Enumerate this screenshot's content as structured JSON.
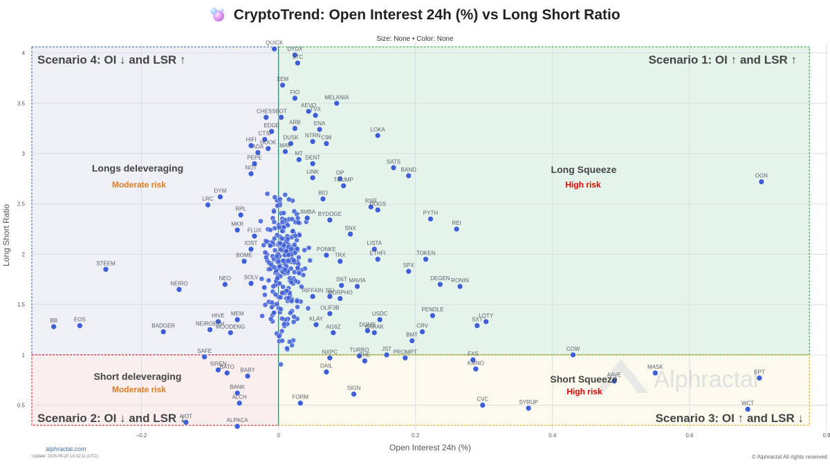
{
  "header": {
    "title": "CryptoTrend: Open Interest 24h (%) vs Long Short Ratio",
    "subtitle": "Size: None • Color: None"
  },
  "footer": {
    "site": "alphractal.com",
    "update": "Update: 2025-05-20 14:32:11 (UTC)",
    "copyright": "© Alphractal All rights reserved"
  },
  "watermark": "Alphractal",
  "colors": {
    "point": "#3f5fd6",
    "scenario1": "#e4f4ea",
    "scenario2": "#fbeeee",
    "scenario3": "#fcfaee",
    "scenario4": "#eef0f6",
    "moderate_risk": "#e07b20",
    "high_risk": "#dd0000"
  },
  "chart_data": {
    "type": "scatter",
    "title": "CryptoTrend: Open Interest 24h (%) vs Long Short Ratio",
    "subtitle": "Size: None • Color: None",
    "xlabel": "Open Interest 24h (%)",
    "ylabel": "Long Short Ratio",
    "xlim": [
      -0.36,
      0.8
    ],
    "ylim": [
      0.25,
      4.1
    ],
    "xticks": [
      -0.2,
      0,
      0.2,
      0.4,
      0.6,
      0.8
    ],
    "xtick_labels": [
      "−0.2",
      "0",
      "0.2",
      "0.4",
      "0.6",
      "0.8"
    ],
    "yticks": [
      0.5,
      1,
      1.5,
      2,
      2.5,
      3,
      3.5,
      4
    ],
    "ytick_labels": [
      "0.5",
      "1",
      "1.5",
      "2",
      "2.5",
      "3",
      "3.5",
      "4"
    ],
    "grid": true,
    "quadrants": {
      "x_split": 0,
      "y_split": 1,
      "box_x": [
        -0.36,
        0.775
      ],
      "box_y": [
        0.3,
        4.06
      ],
      "scenario1": {
        "label": "Scenario 1: OI ↑ and LSR ↑",
        "zone": "Long Squeeze",
        "risk": "High risk"
      },
      "scenario2": {
        "label": "Scenario 2: OI ↓ and LSR ↓",
        "zone": "Short deleveraging",
        "risk": "Moderate risk"
      },
      "scenario3": {
        "label": "Scenario 3: OI ↑ and LSR ↓",
        "zone": "Short Squeeze",
        "risk": "High risk"
      },
      "scenario4": {
        "label": "Scenario 4: OI ↓ and LSR ↑",
        "zone": "Longs deleveraging",
        "risk": "Moderate risk"
      }
    },
    "points": [
      {
        "label": "QUICK",
        "x": -0.006,
        "y": 4.04
      },
      {
        "label": "DYDX",
        "x": 0.024,
        "y": 3.98
      },
      {
        "label": "STC",
        "x": 0.028,
        "y": 3.9
      },
      {
        "label": "XEM",
        "x": 0.006,
        "y": 3.68
      },
      {
        "label": "FIO",
        "x": 0.024,
        "y": 3.55
      },
      {
        "label": "MELANIA",
        "x": 0.085,
        "y": 3.5
      },
      {
        "label": "AEVO",
        "x": 0.044,
        "y": 3.42
      },
      {
        "label": "TVX",
        "x": 0.054,
        "y": 3.38
      },
      {
        "label": "CHESS",
        "x": -0.018,
        "y": 3.36
      },
      {
        "label": "BOT",
        "x": 0.004,
        "y": 3.36
      },
      {
        "label": "ARB",
        "x": 0.024,
        "y": 3.25
      },
      {
        "label": "ENA",
        "x": 0.06,
        "y": 3.24
      },
      {
        "label": "EDGE",
        "x": -0.01,
        "y": 3.22
      },
      {
        "label": "LOKA",
        "x": 0.145,
        "y": 3.18
      },
      {
        "label": "DUSK",
        "x": 0.018,
        "y": 3.1
      },
      {
        "label": "NTRN",
        "x": 0.05,
        "y": 3.12
      },
      {
        "label": "C98",
        "x": 0.07,
        "y": 3.1
      },
      {
        "label": "CTSI",
        "x": -0.02,
        "y": 3.14
      },
      {
        "label": "HIFI",
        "x": -0.04,
        "y": 3.08
      },
      {
        "label": "HOOK",
        "x": -0.015,
        "y": 3.05
      },
      {
        "label": "ADA",
        "x": -0.03,
        "y": 3.01
      },
      {
        "label": "MAV",
        "x": 0.01,
        "y": 3.02
      },
      {
        "label": "SATS",
        "x": 0.168,
        "y": 2.86
      },
      {
        "label": "BAND",
        "x": 0.19,
        "y": 2.78
      },
      {
        "label": "OGN",
        "x": 0.705,
        "y": 2.72
      },
      {
        "label": "MT",
        "x": 0.03,
        "y": 2.94
      },
      {
        "label": "DENT",
        "x": 0.05,
        "y": 2.9
      },
      {
        "label": "PEPE",
        "x": -0.035,
        "y": 2.9
      },
      {
        "label": "NOT",
        "x": -0.04,
        "y": 2.8
      },
      {
        "label": "LINK",
        "x": 0.05,
        "y": 2.76
      },
      {
        "label": "OP",
        "x": 0.09,
        "y": 2.75
      },
      {
        "label": "TRUMP",
        "x": 0.095,
        "y": 2.68
      },
      {
        "label": "DYM",
        "x": -0.085,
        "y": 2.57
      },
      {
        "label": "LRC",
        "x": -0.103,
        "y": 2.49
      },
      {
        "label": "BIO",
        "x": 0.065,
        "y": 2.55
      },
      {
        "label": "RSR",
        "x": 0.135,
        "y": 2.47
      },
      {
        "label": "DOGS",
        "x": 0.145,
        "y": 2.44
      },
      {
        "label": "PYTH",
        "x": 0.222,
        "y": 2.35
      },
      {
        "label": "REI",
        "x": 0.26,
        "y": 2.25
      },
      {
        "label": "RPL",
        "x": -0.055,
        "y": 2.39
      },
      {
        "label": "JIMBA",
        "x": 0.042,
        "y": 2.36
      },
      {
        "label": "BYDOGE",
        "x": 0.075,
        "y": 2.34
      },
      {
        "label": "SNX",
        "x": 0.105,
        "y": 2.2
      },
      {
        "label": "MKR",
        "x": -0.06,
        "y": 2.24
      },
      {
        "label": "FLUX",
        "x": -0.035,
        "y": 2.18
      },
      {
        "label": "LISTA",
        "x": 0.14,
        "y": 2.05
      },
      {
        "label": "ETHFI",
        "x": 0.145,
        "y": 1.95
      },
      {
        "label": "TOKEN",
        "x": 0.215,
        "y": 1.95
      },
      {
        "label": "SPX",
        "x": 0.19,
        "y": 1.83
      },
      {
        "label": "IOST",
        "x": -0.04,
        "y": 2.05
      },
      {
        "label": "BOME",
        "x": -0.05,
        "y": 1.93
      },
      {
        "label": "PONKE",
        "x": 0.07,
        "y": 1.99
      },
      {
        "label": "TRX",
        "x": 0.09,
        "y": 1.93
      },
      {
        "label": "STEEM",
        "x": -0.252,
        "y": 1.85
      },
      {
        "label": "NEO",
        "x": -0.078,
        "y": 1.7
      },
      {
        "label": "NEIRO",
        "x": -0.145,
        "y": 1.65
      },
      {
        "label": "SOLV",
        "x": -0.04,
        "y": 1.71
      },
      {
        "label": "DEGEN",
        "x": 0.236,
        "y": 1.7
      },
      {
        "label": "RONIN",
        "x": 0.265,
        "y": 1.68
      },
      {
        "label": "SNT",
        "x": 0.092,
        "y": 1.69
      },
      {
        "label": "MAVIA",
        "x": 0.115,
        "y": 1.68
      },
      {
        "label": "SEI",
        "x": 0.075,
        "y": 1.58
      },
      {
        "label": "MORPHO",
        "x": 0.09,
        "y": 1.56
      },
      {
        "label": "RIFFAIN",
        "x": 0.05,
        "y": 1.58
      },
      {
        "label": "PENDLE",
        "x": 0.225,
        "y": 1.39
      },
      {
        "label": "LQTY",
        "x": 0.303,
        "y": 1.33
      },
      {
        "label": "SXT",
        "x": 0.29,
        "y": 1.29
      },
      {
        "label": "USDC",
        "x": 0.148,
        "y": 1.35
      },
      {
        "label": "BB",
        "x": -0.328,
        "y": 1.28
      },
      {
        "label": "EOS",
        "x": -0.29,
        "y": 1.29
      },
      {
        "label": "BADGER",
        "x": -0.168,
        "y": 1.23
      },
      {
        "label": "HIVE",
        "x": -0.088,
        "y": 1.33
      },
      {
        "label": "NEIROETH",
        "x": -0.1,
        "y": 1.25
      },
      {
        "label": "MEM",
        "x": -0.06,
        "y": 1.35
      },
      {
        "label": "MOODENG",
        "x": -0.07,
        "y": 1.22
      },
      {
        "label": "KLAY",
        "x": 0.055,
        "y": 1.3
      },
      {
        "label": "OLIF3B",
        "x": 0.075,
        "y": 1.41
      },
      {
        "label": "AI16Z",
        "x": 0.08,
        "y": 1.22
      },
      {
        "label": "DOME",
        "x": 0.13,
        "y": 1.24
      },
      {
        "label": "BARAK",
        "x": 0.14,
        "y": 1.22
      },
      {
        "label": "CRV",
        "x": 0.21,
        "y": 1.23
      },
      {
        "label": "BMT",
        "x": 0.195,
        "y": 1.14
      },
      {
        "label": "JST",
        "x": 0.158,
        "y": 1.0
      },
      {
        "label": "PROMPT",
        "x": 0.185,
        "y": 0.97
      },
      {
        "label": "TURBO",
        "x": 0.118,
        "y": 0.99
      },
      {
        "label": "ZHE",
        "x": 0.126,
        "y": 0.94
      },
      {
        "label": "NXPC",
        "x": 0.075,
        "y": 0.97
      },
      {
        "label": "SAFE",
        "x": -0.108,
        "y": 0.98
      },
      {
        "label": "SIREN",
        "x": -0.088,
        "y": 0.85
      },
      {
        "label": "BATO",
        "x": -0.075,
        "y": 0.82
      },
      {
        "label": "BABY",
        "x": -0.045,
        "y": 0.79
      },
      {
        "label": "BANK",
        "x": -0.06,
        "y": 0.62
      },
      {
        "label": "ALCH",
        "x": -0.057,
        "y": 0.52
      },
      {
        "label": "AIOT",
        "x": -0.135,
        "y": 0.33
      },
      {
        "label": "ALPACA",
        "x": -0.06,
        "y": 0.29
      },
      {
        "label": "FORM",
        "x": 0.032,
        "y": 0.52
      },
      {
        "label": "SIGN",
        "x": 0.11,
        "y": 0.61
      },
      {
        "label": "DAIL",
        "x": 0.07,
        "y": 0.83
      },
      {
        "label": "FXS",
        "x": 0.284,
        "y": 0.95
      },
      {
        "label": "KMNO",
        "x": 0.288,
        "y": 0.86
      },
      {
        "label": "CVC",
        "x": 0.298,
        "y": 0.5
      },
      {
        "label": "SYRUP",
        "x": 0.365,
        "y": 0.47
      },
      {
        "label": "COW",
        "x": 0.43,
        "y": 1.0
      },
      {
        "label": "AAVE",
        "x": 0.49,
        "y": 0.74
      },
      {
        "label": "MASK",
        "x": 0.55,
        "y": 0.82
      },
      {
        "label": "EPT",
        "x": 0.702,
        "y": 0.77
      },
      {
        "label": "WCT",
        "x": 0.685,
        "y": 0.46
      }
    ]
  }
}
